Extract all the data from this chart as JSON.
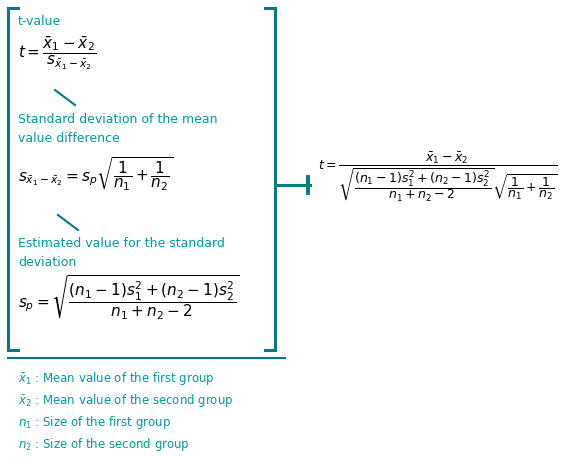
{
  "bg_color": "#ffffff",
  "teal_color": "#007B80",
  "teal_text_color": "#009999",
  "text_color": "#000000",
  "fig_width": 5.65,
  "fig_height": 4.7,
  "label_tvalue": "t-value",
  "label_std": "Standard deviation of the mean\nvalue difference",
  "label_est": "Estimated value for the standard\ndeviation",
  "legend_x1": "$\\bar{x}_1$ : Mean value of the first group",
  "legend_x2": "$\\bar{x}_2$ : Mean value of the second group",
  "legend_n1": "$n_1$ : Size of the first group",
  "legend_n2": "$n_2$ : Size of the second group"
}
